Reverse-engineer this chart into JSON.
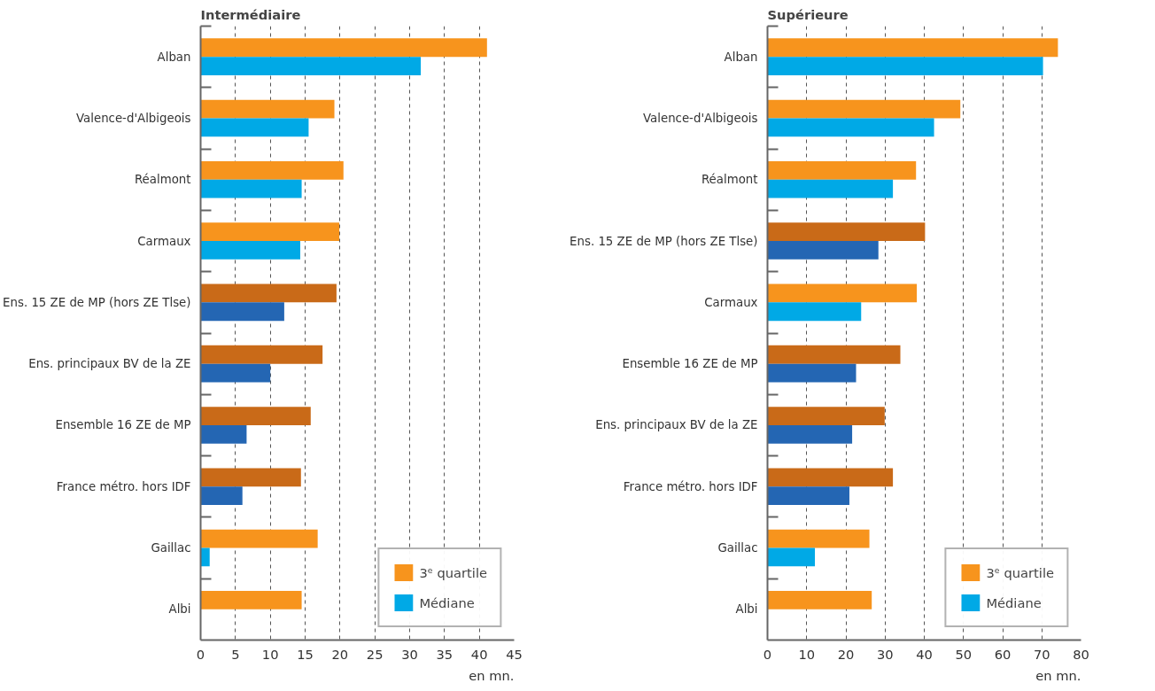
{
  "chart_data": [
    {
      "type": "bar",
      "orientation": "horizontal",
      "title": "Intermédiaire",
      "xlabel": "en mn.",
      "categories": [
        "Alban",
        "Valence-d'Albigeois",
        "Réalmont",
        "Carmaux",
        "Ens. 15 ZE de MP (hors ZE Tlse)",
        "Ens. principaux BV de la ZE",
        "Ensemble 16 ZE de MP",
        "France métro. hors IDF",
        "Gaillac",
        "Albi"
      ],
      "series": [
        {
          "name": "3ᵉ quartile",
          "color": "#f7941d",
          "colors": [
            "#f7941d",
            "#f7941d",
            "#f7941d",
            "#f7941d",
            "#c96a18",
            "#c96a18",
            "#c96a18",
            "#c96a18",
            "#f7941d",
            "#f7941d"
          ],
          "values": [
            41.1,
            19.2,
            20.5,
            19.9,
            19.5,
            17.5,
            15.8,
            14.4,
            16.8,
            14.5
          ]
        },
        {
          "name": "Médiane",
          "color": "#00a9e6",
          "colors": [
            "#00a9e6",
            "#00a9e6",
            "#00a9e6",
            "#00a9e6",
            "#2466b3",
            "#2466b3",
            "#2466b3",
            "#2466b3",
            "#00a9e6",
            "#00a9e6"
          ],
          "values": [
            31.6,
            15.5,
            14.5,
            14.3,
            12.0,
            10.0,
            6.6,
            6.0,
            1.3,
            0
          ]
        }
      ],
      "xlim": [
        0,
        45
      ],
      "xticks": [
        0,
        5,
        10,
        15,
        20,
        25,
        30,
        35,
        40,
        45
      ],
      "grid": "x",
      "legend": "bottom right"
    },
    {
      "type": "bar",
      "orientation": "horizontal",
      "title": "Supérieure",
      "xlabel": "en mn.",
      "categories": [
        "Alban",
        "Valence-d'Albigeois",
        "Réalmont",
        "Ens. 15 ZE de MP (hors ZE Tlse)",
        "Carmaux",
        "Ensemble 16 ZE de MP",
        "Ens. principaux BV de la ZE",
        "France métro. hors IDF",
        "Gaillac",
        "Albi"
      ],
      "series": [
        {
          "name": "3ᵉ quartile",
          "color": "#f7941d",
          "colors": [
            "#f7941d",
            "#f7941d",
            "#f7941d",
            "#c96a18",
            "#f7941d",
            "#c96a18",
            "#c96a18",
            "#c96a18",
            "#f7941d",
            "#f7941d"
          ],
          "values": [
            74.1,
            49.2,
            37.9,
            40.2,
            38.1,
            33.9,
            29.9,
            32.0,
            26.0,
            26.6
          ]
        },
        {
          "name": "Médiane",
          "color": "#00a9e6",
          "colors": [
            "#00a9e6",
            "#00a9e6",
            "#00a9e6",
            "#2466b3",
            "#00a9e6",
            "#2466b3",
            "#2466b3",
            "#2466b3",
            "#00a9e6",
            "#00a9e6"
          ],
          "values": [
            70.3,
            42.5,
            32.0,
            28.3,
            23.9,
            22.6,
            21.6,
            20.9,
            12.1,
            0
          ]
        }
      ],
      "xlim": [
        0,
        80
      ],
      "xticks": [
        0,
        10,
        20,
        30,
        40,
        50,
        60,
        70,
        80
      ],
      "grid": "x",
      "legend": "bottom right"
    }
  ]
}
